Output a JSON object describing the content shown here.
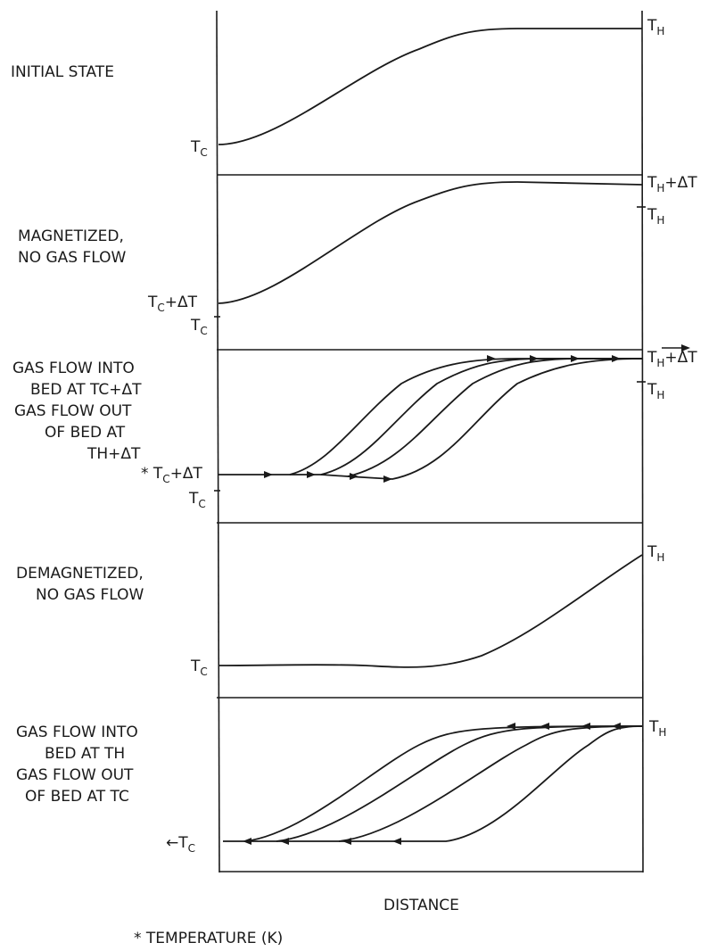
{
  "panels": [
    {
      "label_lines": [
        "INITIAL STATE"
      ],
      "left_labels": [
        {
          "main": "T",
          "sub": "C",
          "suffix": ""
        }
      ],
      "right_labels": [
        {
          "main": "T",
          "sub": "H",
          "suffix": ""
        }
      ]
    },
    {
      "label_lines": [
        "MAGNETIZED,",
        "NO GAS FLOW"
      ],
      "left_labels": [
        {
          "main": "T",
          "sub": "C",
          "suffix": "+ΔT"
        },
        {
          "main": "T",
          "sub": "C",
          "suffix": ""
        }
      ],
      "right_labels": [
        {
          "main": "T",
          "sub": "H",
          "suffix": "+ΔT"
        },
        {
          "main": "T",
          "sub": "H",
          "suffix": ""
        }
      ]
    },
    {
      "label_lines": [
        "GAS FLOW INTO",
        "BED AT TC+ΔT",
        "GAS FLOW OUT",
        "OF BED AT",
        "TH+ΔT"
      ],
      "left_labels": [
        {
          "main": "* T",
          "sub": "C",
          "suffix": "+ΔT"
        },
        {
          "main": "T",
          "sub": "C",
          "suffix": ""
        }
      ],
      "right_labels": [
        {
          "main": "T",
          "sub": "H",
          "suffix": "+ΔT"
        },
        {
          "main": "T",
          "sub": "H",
          "suffix": ""
        }
      ]
    },
    {
      "label_lines": [
        "DEMAGNETIZED,",
        "NO GAS FLOW"
      ],
      "left_labels": [
        {
          "main": "T",
          "sub": "C",
          "suffix": ""
        }
      ],
      "right_labels": [
        {
          "main": "T",
          "sub": "H",
          "suffix": ""
        }
      ]
    },
    {
      "label_lines": [
        "GAS FLOW INTO",
        "BED AT TH",
        "GAS FLOW OUT",
        "OF BED AT TC"
      ],
      "left_labels": [
        {
          "main": "←T",
          "sub": "C",
          "suffix": ""
        }
      ],
      "right_labels": [
        {
          "main": "T",
          "sub": "H",
          "suffix": ""
        }
      ]
    }
  ],
  "x_axis_label": "DISTANCE",
  "footnote": "* TEMPERATURE (K)"
}
